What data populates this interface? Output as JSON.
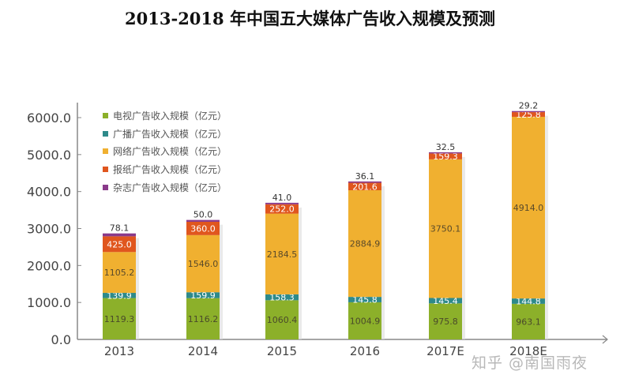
{
  "chart_data": {
    "type": "bar",
    "stacked": true,
    "title": "2013-2018 年中国五大媒体广告收入规模及预测",
    "xlabel": "",
    "ylabel": "",
    "ylim": [
      0,
      6000
    ],
    "yticks": [
      "0.0",
      "1000.0",
      "2000.0",
      "3000.0",
      "4000.0",
      "5000.0",
      "6000.0"
    ],
    "ytick_values": [
      0,
      1000,
      2000,
      3000,
      4000,
      5000,
      6000
    ],
    "categories": [
      "2013",
      "2014",
      "2015",
      "2016",
      "2017E",
      "2018E"
    ],
    "legend_position": "top-left",
    "grid": false,
    "series": [
      {
        "name": "电视广告收入规模（亿元）",
        "color": "#8cb02a",
        "label_color": "#4a4a2a",
        "values": [
          1119.3,
          1116.2,
          1060.4,
          1004.9,
          975.8,
          963.1
        ]
      },
      {
        "name": "广播广告收入规模（亿元）",
        "color": "#2e8a8a",
        "label_color": "#ffffff",
        "values": [
          139.9,
          159.9,
          158.3,
          145.8,
          145.4,
          144.8
        ]
      },
      {
        "name": "网络广告收入规模（亿元）",
        "color": "#f0b030",
        "label_color": "#5a4a2a",
        "values": [
          1105.2,
          1546.0,
          2184.5,
          2884.9,
          3750.1,
          4914.0
        ]
      },
      {
        "name": "报纸广告收入规模（亿元）",
        "color": "#e0561e",
        "label_color": "#ffffff",
        "values": [
          425.0,
          360.0,
          252.0,
          201.6,
          159.3,
          125.8
        ]
      },
      {
        "name": "杂志广告收入规模（亿元）",
        "color": "#8a3a8a",
        "label_color": "#333333",
        "values": [
          78.1,
          50.0,
          41.0,
          36.1,
          32.5,
          29.2
        ]
      }
    ]
  },
  "watermark": "知乎 @南国雨夜"
}
